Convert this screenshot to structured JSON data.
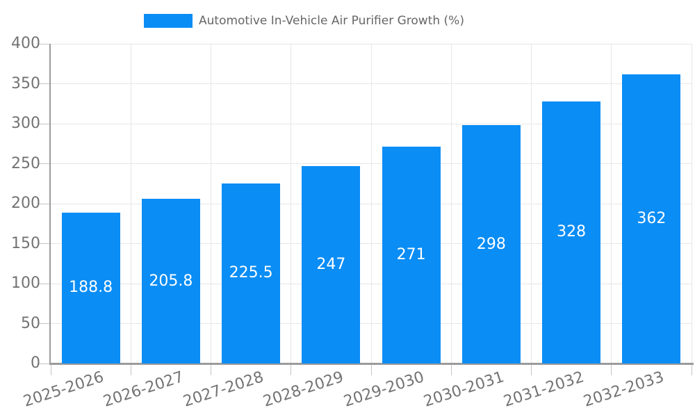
{
  "chart_data": {
    "type": "bar",
    "title": "Automotive In-Vehicle Air Purifier Growth (%)",
    "legend_position": "top",
    "categories": [
      "2025-2026",
      "2026-2027",
      "2027-2028",
      "2028-2029",
      "2029-2030",
      "2030-2031",
      "2031-2032",
      "2032-2033"
    ],
    "series": [
      {
        "name": "Automotive In-Vehicle Air Purifier Growth (%)",
        "values": [
          188.8,
          205.8,
          225.5,
          247,
          271,
          298,
          328,
          362
        ]
      }
    ],
    "value_labels": [
      "188.8",
      "205.8",
      "225.5",
      "247",
      "271",
      "298",
      "328",
      "362"
    ],
    "xlabel": "",
    "ylabel": "",
    "ylim": [
      0,
      400
    ],
    "yticks": [
      0,
      50,
      100,
      150,
      200,
      250,
      300,
      350,
      400
    ],
    "grid": true,
    "x_label_rotation_deg": -18,
    "colors": {
      "bar": "#0a8df5",
      "grid": "#e6e6e6",
      "tick": "#c4c4c4",
      "axis": "#9b9b9b",
      "tick_text": "#737373",
      "legend_text": "#666666",
      "value_text": "#ffffff",
      "background": "#ffffff"
    }
  }
}
